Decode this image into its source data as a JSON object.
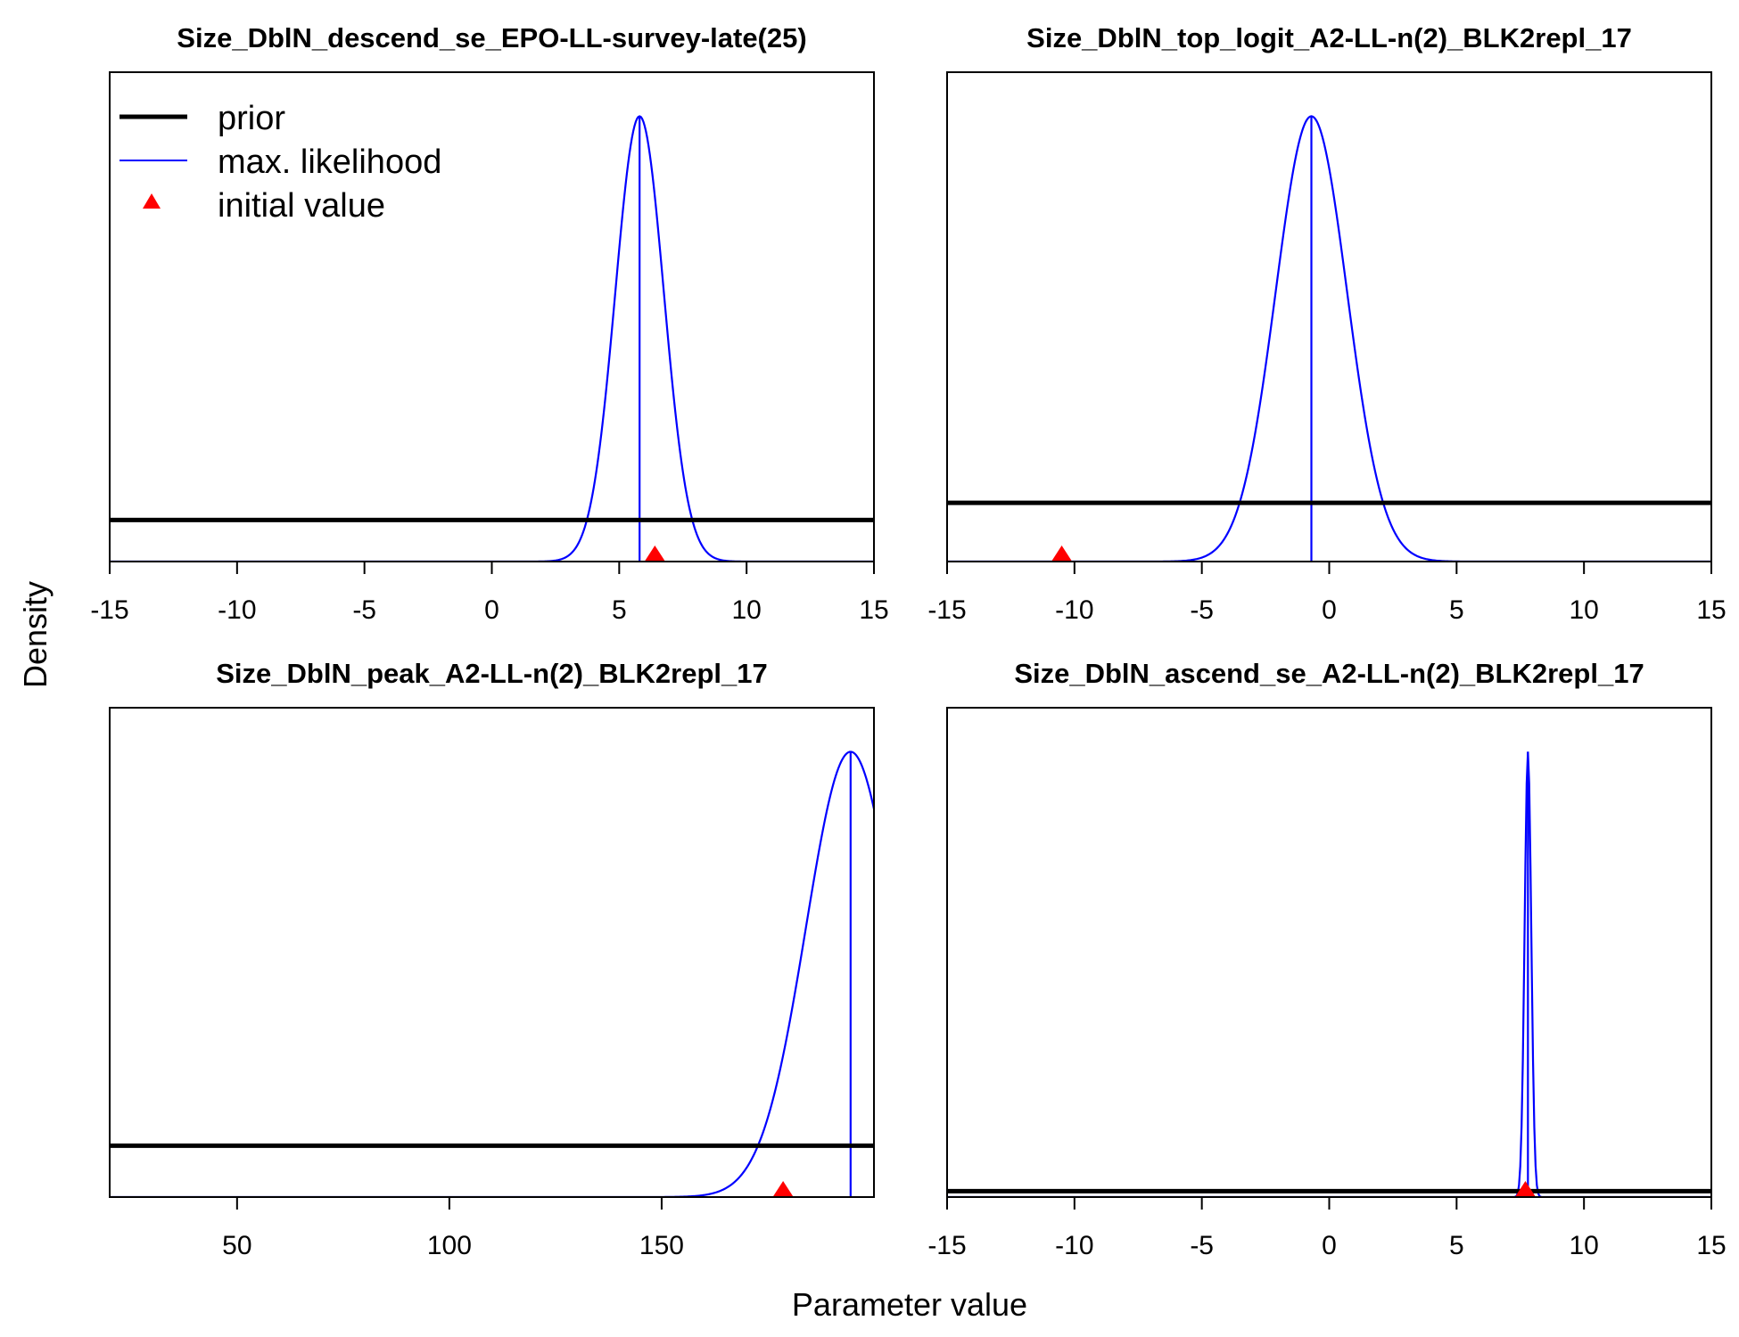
{
  "figure": {
    "ylabel": "Density",
    "xlabel": "Parameter value",
    "legend": {
      "placement": "top-left of first panel",
      "items": [
        {
          "label": "prior",
          "style": "thick-black-line"
        },
        {
          "label": "max. likelihood",
          "style": "thin-blue-line"
        },
        {
          "label": "initial value",
          "style": "red-triangle"
        }
      ]
    },
    "colors": {
      "prior": "#000000",
      "max_likelihood": "#0000ff",
      "initial_value": "#ff0000"
    }
  },
  "chart_data": [
    {
      "type": "line",
      "title": "Size_DblN_descend_se_EPO-LL-survey-late(25)",
      "xlim": [
        -15,
        15
      ],
      "xticks": [
        -15,
        -10,
        -5,
        0,
        5,
        10,
        15
      ],
      "tick_labels": [
        "-15",
        "-10",
        "-5",
        "0",
        "5",
        "10",
        "15"
      ],
      "prior_level": 0.085,
      "ml": {
        "mean": 5.8,
        "sd": 0.95
      },
      "initial": 6.4
    },
    {
      "type": "line",
      "title": "Size_DblN_top_logit_A2-LL-n(2)_BLK2repl_17",
      "xlim": [
        -15,
        15
      ],
      "xticks": [
        -15,
        -10,
        -5,
        0,
        5,
        10,
        15
      ],
      "tick_labels": [
        "-15",
        "-10",
        "-5",
        "0",
        "5",
        "10",
        "15"
      ],
      "prior_level": 0.12,
      "ml": {
        "mean": -0.7,
        "sd": 1.4
      },
      "initial": -10.5
    },
    {
      "type": "line",
      "title": "Size_DblN_peak_A2-LL-n(2)_BLK2repl_17",
      "xlim": [
        20,
        200
      ],
      "xticks": [
        50,
        100,
        150
      ],
      "tick_labels": [
        "50",
        "100",
        "150"
      ],
      "prior_level": 0.105,
      "ml": {
        "mean": 194.5,
        "sd": 10.5
      },
      "initial": 178.6
    },
    {
      "type": "line",
      "title": "Size_DblN_ascend_se_A2-LL-n(2)_BLK2repl_17",
      "xlim": [
        -15,
        15
      ],
      "xticks": [
        -15,
        -10,
        -5,
        0,
        5,
        10,
        15
      ],
      "tick_labels": [
        "-15",
        "-10",
        "-5",
        "0",
        "5",
        "10",
        "15"
      ],
      "prior_level": 0.012,
      "ml": {
        "mean": 7.8,
        "sd": 0.13
      },
      "initial": 7.7
    }
  ]
}
